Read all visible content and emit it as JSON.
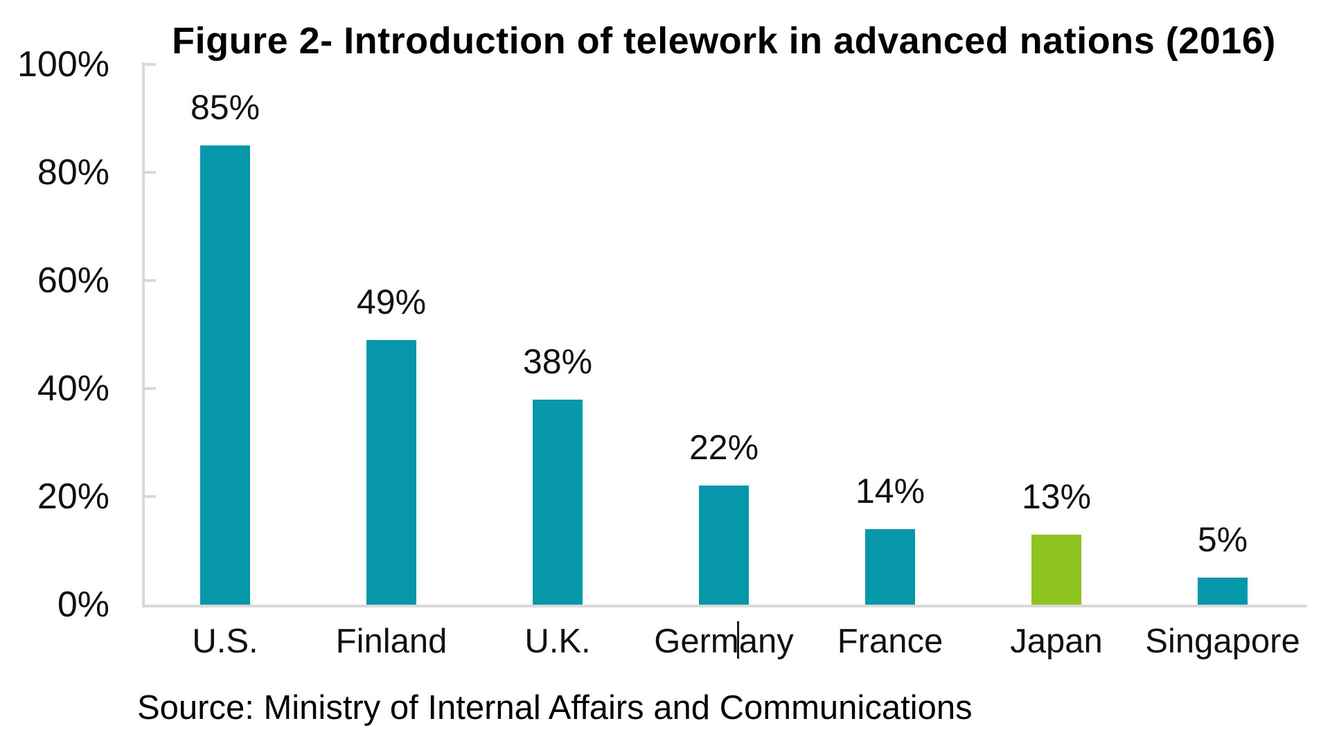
{
  "title": "Figure 2- Introduction of telework in advanced nations (2016)",
  "source_note": "Source: Ministry of Internal Affairs and Communications",
  "colors": {
    "bar_default": "#0797AB",
    "bar_highlight": "#8DC41F",
    "axis": "#D9D9D9",
    "text": "#111111"
  },
  "artifacts": {
    "text_cursor_visible_in_label": "Germany"
  },
  "chart_data": {
    "type": "bar",
    "title": "Figure 2- Introduction of telework in advanced nations (2016)",
    "categories": [
      "U.S.",
      "Finland",
      "U.K.",
      "Germany",
      "France",
      "Japan",
      "Singapore"
    ],
    "values": [
      85,
      49,
      38,
      22,
      14,
      13,
      5
    ],
    "value_labels": [
      "85%",
      "49%",
      "38%",
      "22%",
      "14%",
      "13%",
      "5%"
    ],
    "bar_colors": [
      "#0797AB",
      "#0797AB",
      "#0797AB",
      "#0797AB",
      "#0797AB",
      "#8DC41F",
      "#0797AB"
    ],
    "highlighted_category": "Japan",
    "xlabel": "",
    "ylabel": "",
    "ylim": [
      0,
      100
    ],
    "yticks": [
      0,
      20,
      40,
      60,
      80,
      100
    ],
    "ytick_labels": [
      "0%",
      "20%",
      "40%",
      "60%",
      "80%",
      "100%"
    ],
    "grid": false,
    "legend": false,
    "source": "Source: Ministry of Internal Affairs and Communications"
  }
}
